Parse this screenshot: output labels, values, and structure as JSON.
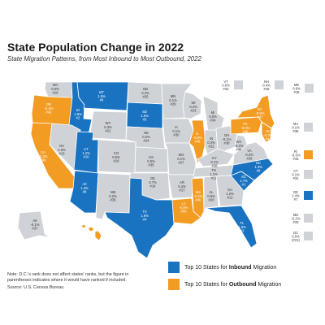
{
  "title": "State Population Change in 2022",
  "subtitle": "State Migration Patterns, from Most Inbound to Most Outbound, 2022",
  "colors": {
    "inbound": "#1a73c1",
    "outbound": "#f39c24",
    "neutral": "#cfd2d6"
  },
  "states": [
    {
      "abbr": "WA",
      "change": "0.6%",
      "rank": "#16",
      "cat": "neutral"
    },
    {
      "abbr": "OR",
      "change": "-0.4%",
      "rank": "#42",
      "cat": "outbound"
    },
    {
      "abbr": "CA",
      "change": "-0.3%",
      "rank": "#49",
      "cat": "outbound"
    },
    {
      "abbr": "ID",
      "change": "1.8%",
      "rank": "#2",
      "cat": "inbound"
    },
    {
      "abbr": "NV",
      "change": "1.0%",
      "rank": "#13",
      "cat": "neutral"
    },
    {
      "abbr": "MT",
      "change": "1.5%",
      "rank": "#6",
      "cat": "inbound"
    },
    {
      "abbr": "WY",
      "change": "0.3%",
      "rank": "#21",
      "cat": "neutral"
    },
    {
      "abbr": "UT",
      "change": "1.2%",
      "rank": "#10",
      "cat": "inbound"
    },
    {
      "abbr": "AZ",
      "change": "1.3%",
      "rank": "#8",
      "cat": "inbound"
    },
    {
      "abbr": "CO",
      "change": "0.5%",
      "rank": "#19",
      "cat": "neutral"
    },
    {
      "abbr": "NM",
      "change": "0.2%",
      "rank": "#39",
      "cat": "neutral"
    },
    {
      "abbr": "ND",
      "change": "0.2%",
      "rank": "#25",
      "cat": "neutral"
    },
    {
      "abbr": "SD",
      "change": "1.5%",
      "rank": "#5",
      "cat": "inbound"
    },
    {
      "abbr": "NE",
      "change": "0.2%",
      "rank": "#24",
      "cat": "neutral"
    },
    {
      "abbr": "KS",
      "change": "0.0%",
      "rank": "#35",
      "cat": "neutral"
    },
    {
      "abbr": "OK",
      "change": "0.7%",
      "rank": "#14",
      "cat": "neutral"
    },
    {
      "abbr": "TX",
      "change": "1.6%",
      "rank": "#4",
      "cat": "inbound"
    },
    {
      "abbr": "MN",
      "change": "0.1%",
      "rank": "#29",
      "cat": "neutral"
    },
    {
      "abbr": "IA",
      "change": "0.1%",
      "rank": "#30",
      "cat": "neutral"
    },
    {
      "abbr": "MO",
      "change": "0.1%",
      "rank": "#27",
      "cat": "neutral"
    },
    {
      "abbr": "AR",
      "change": "0.4%",
      "rank": "#17",
      "cat": "neutral"
    },
    {
      "abbr": "LA",
      "change": "-0.8%",
      "rank": "#50",
      "cat": "outbound"
    },
    {
      "abbr": "WI",
      "change": "0.2%",
      "rank": "#23",
      "cat": "neutral"
    },
    {
      "abbr": "IL",
      "change": "-0.8%",
      "rank": "#48",
      "cat": "outbound"
    },
    {
      "abbr": "MI",
      "change": "0.0%",
      "rank": "#34",
      "cat": "neutral"
    },
    {
      "abbr": "IN",
      "change": "0.3%",
      "rank": "#22",
      "cat": "neutral"
    },
    {
      "abbr": "OH",
      "change": "-0.1%",
      "rank": "#38",
      "cat": "neutral"
    },
    {
      "abbr": "KY",
      "change": "0.1%",
      "rank": "#28",
      "cat": "neutral"
    },
    {
      "abbr": "TN",
      "change": "1.1%",
      "rank": "#11",
      "cat": "neutral"
    },
    {
      "abbr": "MS",
      "change": "-0.2%",
      "rank": "#40",
      "cat": "outbound"
    },
    {
      "abbr": "AL",
      "change": "0.5%",
      "rank": "#20",
      "cat": "neutral"
    },
    {
      "abbr": "GA",
      "change": "1.2%",
      "rank": "#12",
      "cat": "neutral"
    },
    {
      "abbr": "FL",
      "change": "1.9%",
      "rank": "#3",
      "cat": "inbound"
    },
    {
      "abbr": "SC",
      "change": "1.7%",
      "rank": "#1",
      "cat": "inbound"
    },
    {
      "abbr": "NC",
      "change": "1.3%",
      "rank": "#9",
      "cat": "inbound"
    },
    {
      "abbr": "VA",
      "change": "0.2%",
      "rank": "#26",
      "cat": "neutral"
    },
    {
      "abbr": "WV",
      "change": "-0.3%",
      "rank": "#41",
      "cat": "neutral"
    },
    {
      "abbr": "PA",
      "change": "-0.3%",
      "rank": "#45",
      "cat": "outbound"
    },
    {
      "abbr": "NY",
      "change": "-0.9%",
      "rank": "#47",
      "cat": "outbound"
    },
    {
      "abbr": "NJ",
      "change": "-0.3%",
      "rank": "#44",
      "cat": "outbound"
    },
    {
      "abbr": "AK",
      "change": "-0.1%",
      "rank": "#37",
      "cat": "neutral"
    },
    {
      "abbr": "HI",
      "change": "-0.5%",
      "rank": "#46",
      "cat": "outbound"
    }
  ],
  "small_states": [
    {
      "abbr": "VT",
      "change": "0.0%",
      "rank": "#32",
      "cat": "neutral"
    },
    {
      "abbr": "NH",
      "change": "0.4%",
      "rank": "#18",
      "cat": "neutral"
    },
    {
      "abbr": "ME",
      "change": "0.6%",
      "rank": "#15",
      "cat": "neutral"
    },
    {
      "abbr": "MA",
      "change": "0.1%",
      "rank": "#36",
      "cat": "neutral"
    },
    {
      "abbr": "RI",
      "change": "-0.3%",
      "rank": "#43",
      "cat": "outbound"
    },
    {
      "abbr": "CT",
      "change": "0.1%",
      "rank": "#31",
      "cat": "neutral"
    },
    {
      "abbr": "DE",
      "change": "1.4%",
      "rank": "#7",
      "cat": "inbound"
    },
    {
      "abbr": "MD",
      "change": "-0.2%",
      "rank": "#33",
      "cat": "neutral"
    },
    {
      "abbr": "DC",
      "change": "0.5%",
      "rank": "(#21)",
      "cat": "neutral"
    }
  ],
  "legend": [
    {
      "prefix": "Top 10 States for ",
      "bold": "Inbound",
      "suffix": " Migration",
      "cat": "inbound"
    },
    {
      "prefix": "Top 10 States for ",
      "bold": "Outbound",
      "suffix": " Migration",
      "cat": "outbound"
    }
  ],
  "note": "Note: D.C.'s rank does not affect states' ranks, but the figure in parentheses indicates where it would have ranked if included.",
  "source": "Source: U.S. Census Bureau."
}
